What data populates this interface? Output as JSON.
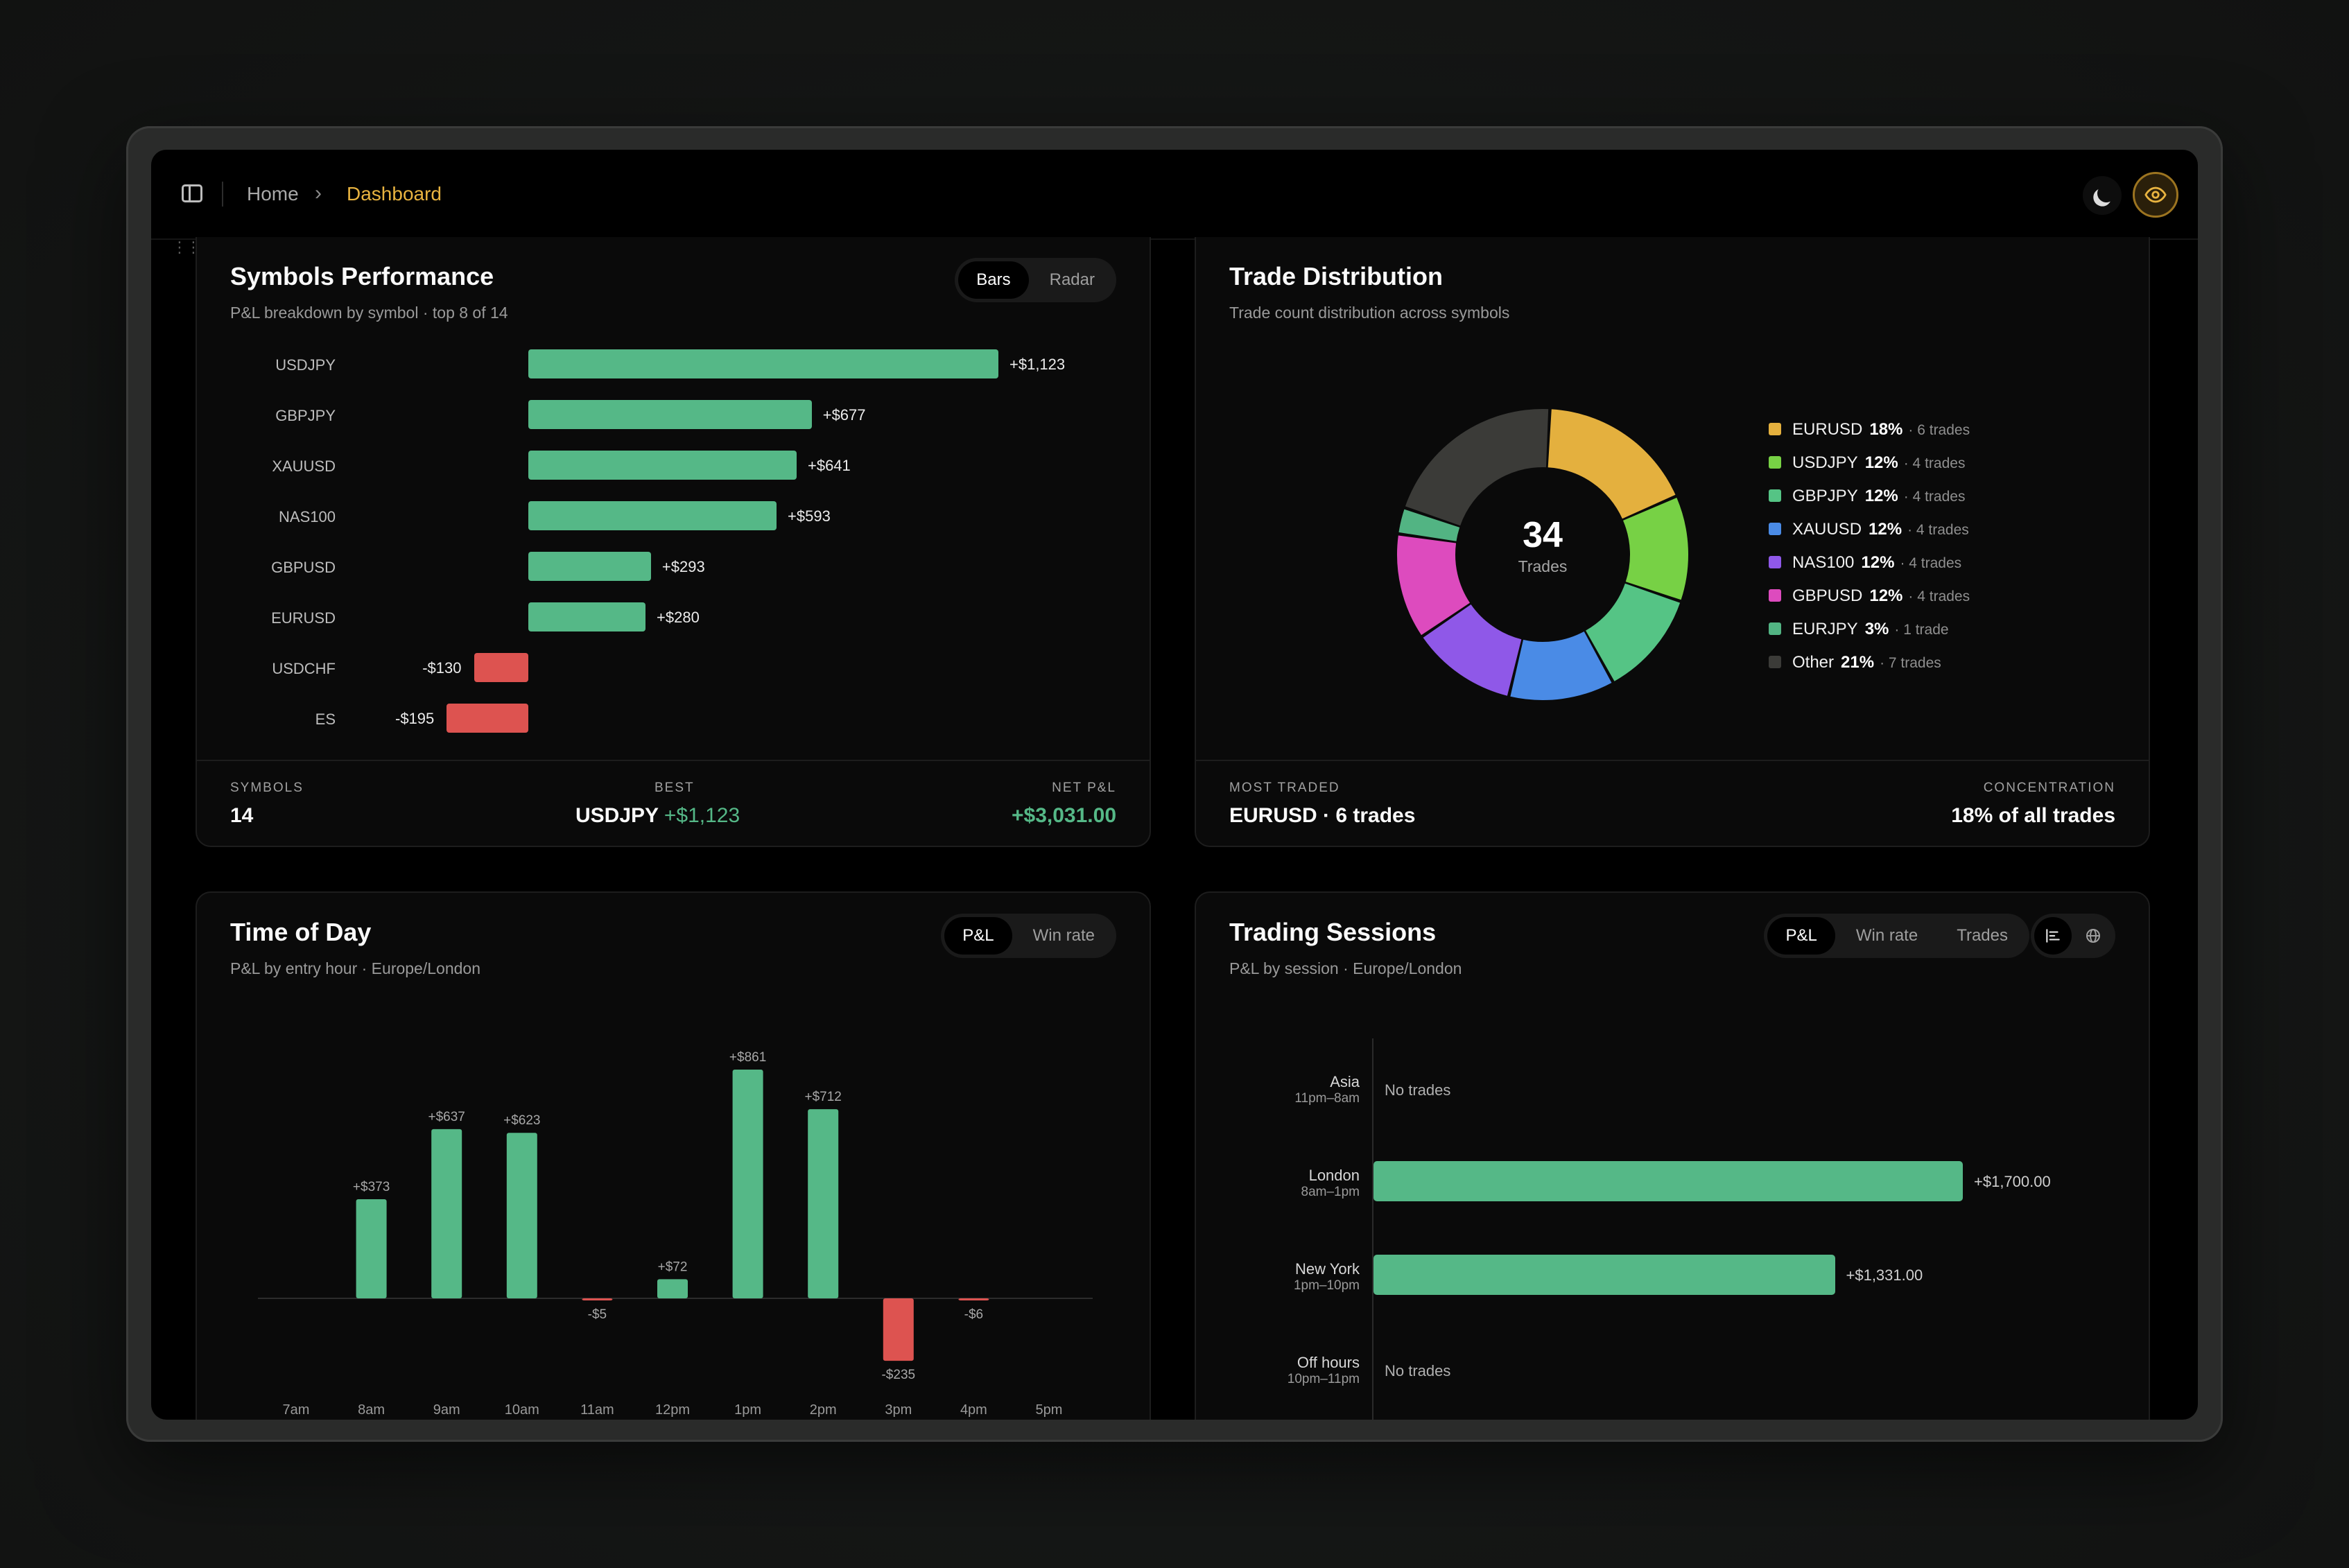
{
  "breadcrumb": {
    "home": "Home",
    "separator": "›",
    "current": "Dashboard"
  },
  "symbols_performance": {
    "title": "Symbols Performance",
    "subtitle": "P&L breakdown by symbol · top 8 of 14",
    "toggle": [
      "Bars",
      "Radar"
    ],
    "toggle_active": "Bars",
    "footer": {
      "symbols_label": "SYMBOLS",
      "symbols_value": "14",
      "best_label": "BEST",
      "best_symbol": "USDJPY",
      "best_value": "+$1,123",
      "net_label": "NET P&L",
      "net_value": "+$3,031.00"
    }
  },
  "trade_distribution": {
    "title": "Trade Distribution",
    "subtitle": "Trade count distribution across symbols",
    "center_value": "34",
    "center_label": "Trades",
    "footer": {
      "most_label": "MOST TRADED",
      "most_value": "EURUSD · 6 trades",
      "conc_label": "CONCENTRATION",
      "conc_value": "18% of all trades"
    }
  },
  "time_of_day": {
    "title": "Time of Day",
    "subtitle": "P&L by entry hour · Europe/London",
    "toggle": [
      "P&L",
      "Win rate"
    ],
    "toggle_active": "P&L"
  },
  "trading_sessions": {
    "title": "Trading Sessions",
    "subtitle": "P&L by session · Europe/London",
    "toggle": [
      "P&L",
      "Win rate",
      "Trades"
    ],
    "toggle_active": "P&L",
    "sessions": [
      {
        "name": "Asia",
        "time": "11pm–8am",
        "value": null,
        "label": "No trades"
      },
      {
        "name": "London",
        "time": "8am–1pm",
        "value": 1700,
        "label": "+$1,700.00"
      },
      {
        "name": "New York",
        "time": "1pm–10pm",
        "value": 1331,
        "label": "+$1,331.00"
      },
      {
        "name": "Off hours",
        "time": "10pm–11pm",
        "value": null,
        "label": "No trades"
      }
    ]
  },
  "colors": {
    "positive": "#55b887",
    "negative": "#dd5350",
    "accent": "#e8b340"
  },
  "chart_data": [
    {
      "type": "bar",
      "orientation": "horizontal",
      "categories": [
        "USDJPY",
        "GBPJPY",
        "XAUUSD",
        "NAS100",
        "GBPUSD",
        "EURUSD",
        "USDCHF",
        "ES"
      ],
      "values": [
        1123,
        677,
        641,
        593,
        293,
        280,
        -130,
        -195
      ],
      "labels": [
        "+$1,123",
        "+$677",
        "+$641",
        "+$593",
        "+$293",
        "+$280",
        "-$130",
        "-$195"
      ]
    },
    {
      "type": "pie",
      "categories": [
        "EURUSD",
        "USDJPY",
        "GBPJPY",
        "XAUUSD",
        "NAS100",
        "GBPUSD",
        "EURJPY",
        "Other"
      ],
      "values": [
        6,
        4,
        4,
        4,
        4,
        4,
        1,
        7
      ],
      "percents": [
        "18%",
        "12%",
        "12%",
        "12%",
        "12%",
        "12%",
        "3%",
        "21%"
      ],
      "counts": [
        "6 trades",
        "4 trades",
        "4 trades",
        "4 trades",
        "4 trades",
        "4 trades",
        "1 trade",
        "7 trades"
      ],
      "colors": [
        "#e4b03e",
        "#77d145",
        "#55c485",
        "#4a8be6",
        "#8f58e8",
        "#dd4bbe",
        "#52b483",
        "#3b3b38"
      ]
    },
    {
      "type": "bar",
      "categories": [
        "7am",
        "8am",
        "9am",
        "10am",
        "11am",
        "12pm",
        "1pm",
        "2pm",
        "3pm",
        "4pm",
        "5pm"
      ],
      "values": [
        null,
        373,
        637,
        623,
        -5,
        72,
        861,
        712,
        -235,
        -6,
        null
      ],
      "labels": [
        "",
        "+$373",
        "+$637",
        "+$623",
        "-$5",
        "+$72",
        "+$861",
        "+$712",
        "-$235",
        "-$6",
        ""
      ]
    }
  ]
}
